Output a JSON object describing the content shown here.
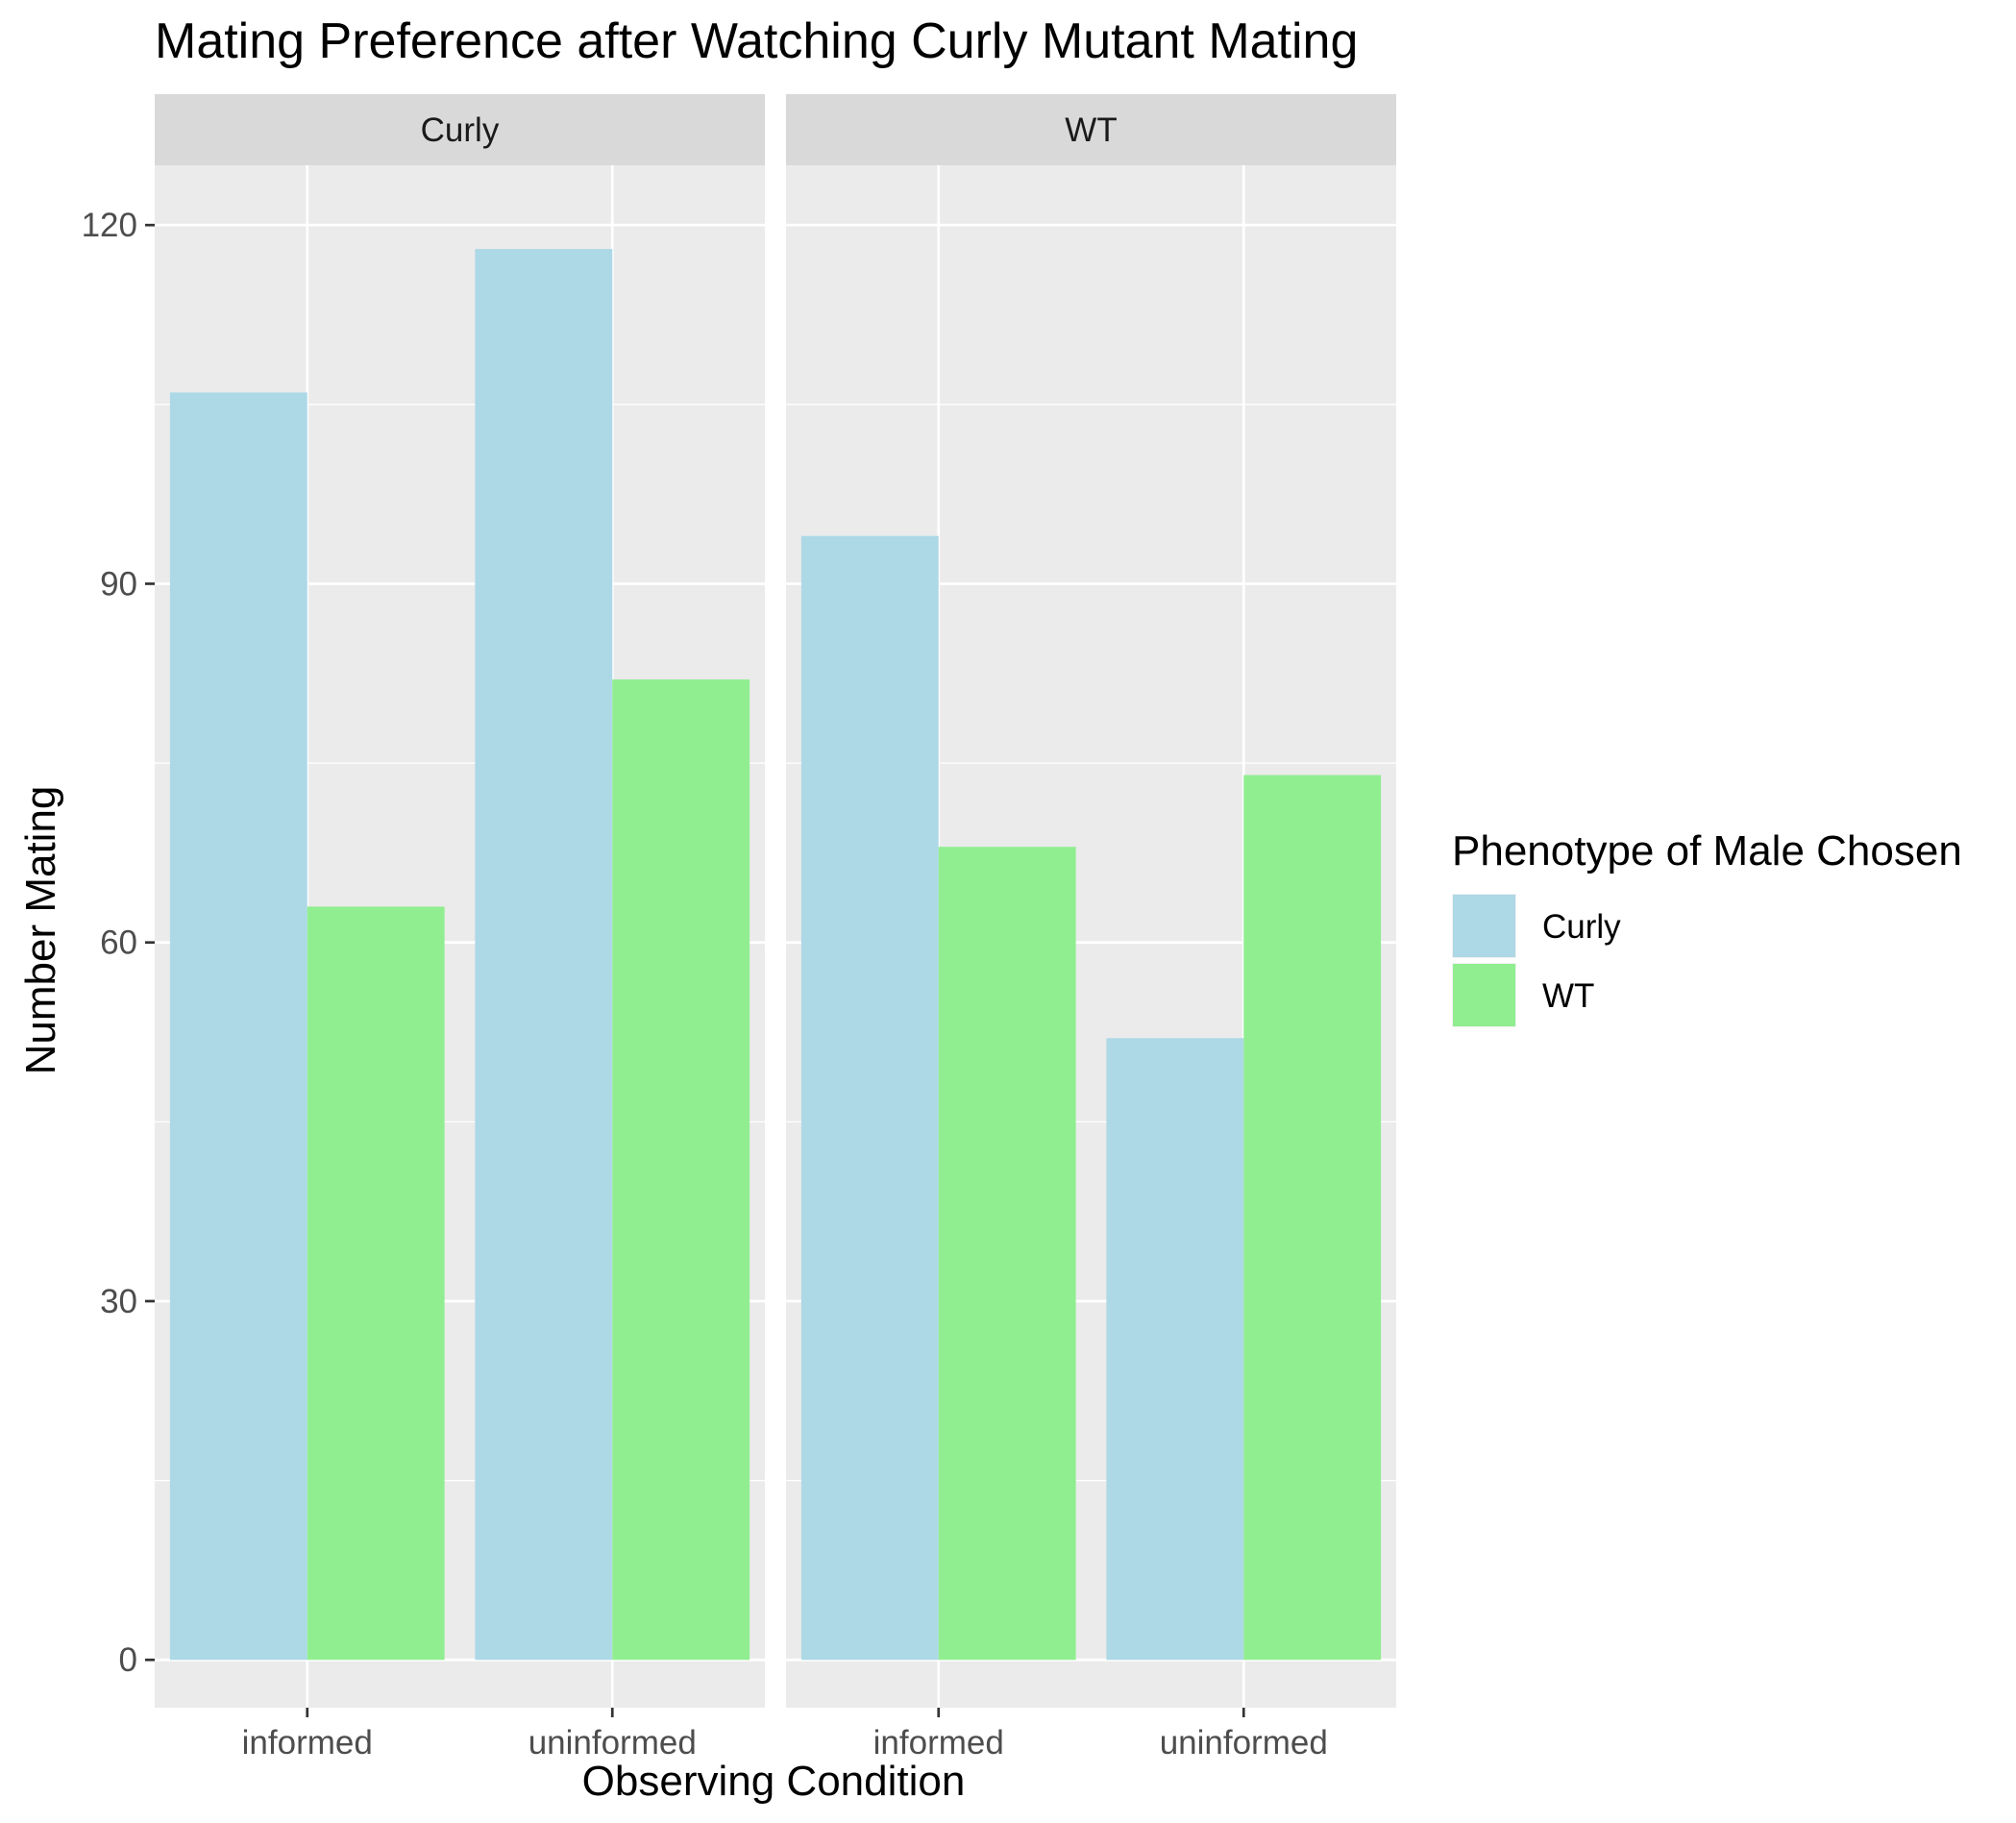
{
  "chart_data": {
    "type": "bar",
    "title": "Mating Preference after Watching Curly Mutant Mating",
    "xlabel": "Observing Condition",
    "ylabel": "Number Mating",
    "ylim": [
      -4,
      125
    ],
    "y_ticks": [
      0,
      30,
      60,
      90,
      120
    ],
    "grid": true,
    "categories": [
      "informed",
      "uninformed"
    ],
    "panels": [
      {
        "label": "Curly",
        "series": [
          {
            "name": "Curly",
            "values": [
              106,
              118
            ]
          },
          {
            "name": "WT",
            "values": [
              63,
              82
            ]
          }
        ]
      },
      {
        "label": "WT",
        "series": [
          {
            "name": "Curly",
            "values": [
              94,
              52
            ]
          },
          {
            "name": "WT",
            "values": [
              68,
              74
            ]
          }
        ]
      }
    ],
    "legend": {
      "title": "Phenotype of Male Chosen",
      "position": "right",
      "items": [
        {
          "label": "Curly",
          "color": "#add8e6"
        },
        {
          "label": "WT",
          "color": "#90ee90"
        }
      ]
    },
    "colors": {
      "panel_background": "#ebebeb",
      "strip_background": "#d9d9d9",
      "grid": "#ffffff",
      "tick": "#333333"
    }
  }
}
